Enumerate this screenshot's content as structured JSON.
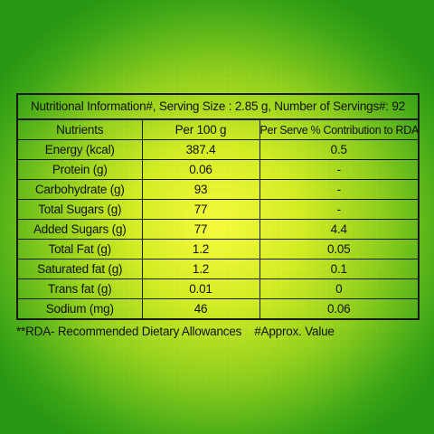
{
  "caption": "Nutritional Information#, Serving Size : 2.85 g, Number of Servings#: 92",
  "headers": {
    "nutrients": "Nutrients",
    "per100": "Per 100 g",
    "perServe": "Per Serve % Contribution to RDA**"
  },
  "rows": [
    {
      "nutrient": "Energy (kcal)",
      "per100": "387.4",
      "rda": "0.5"
    },
    {
      "nutrient": "Protein (g)",
      "per100": "0.06",
      "rda": "-"
    },
    {
      "nutrient": "Carbohydrate (g)",
      "per100": "93",
      "rda": "-"
    },
    {
      "nutrient": "Total Sugars (g)",
      "per100": "77",
      "rda": "-"
    },
    {
      "nutrient": "Added Sugars (g)",
      "per100": "77",
      "rda": "4.4"
    },
    {
      "nutrient": "Total Fat (g)",
      "per100": "1.2",
      "rda": "0.05"
    },
    {
      "nutrient": "Saturated fat (g)",
      "per100": "1.2",
      "rda": "0.1"
    },
    {
      "nutrient": "Trans fat (g)",
      "per100": "0.01",
      "rda": "0"
    },
    {
      "nutrient": "Sodium (mg)",
      "per100": "46",
      "rda": "0.06"
    }
  ],
  "footnote": {
    "rda": "**RDA- Recommended Dietary Allowances",
    "approx": "#Approx. Value"
  }
}
